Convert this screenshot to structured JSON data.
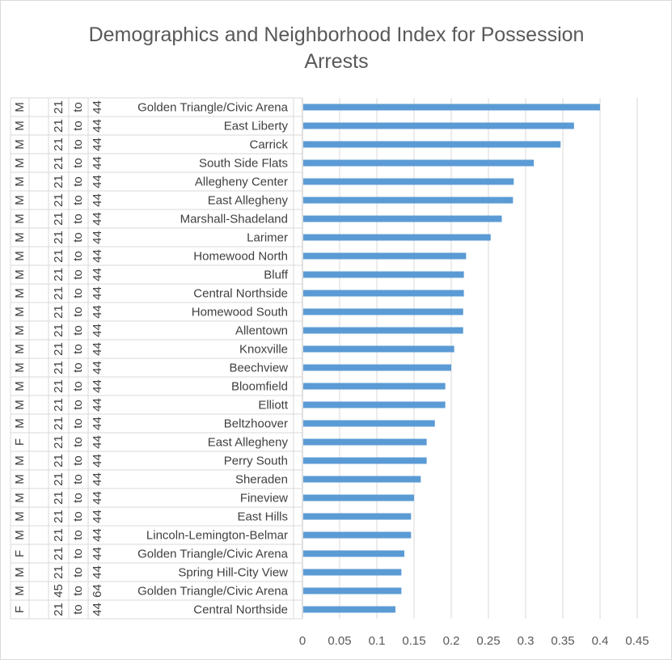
{
  "chart_data": {
    "type": "bar",
    "orientation": "horizontal",
    "title": "Demographics and Neighborhood Index for Possession Arrests",
    "xlim": [
      0,
      0.45
    ],
    "x_ticks": [
      "0",
      "0.05",
      "0.1",
      "0.15",
      "0.2",
      "0.25",
      "0.3",
      "0.35",
      "0.4",
      "0.45"
    ],
    "grid": true,
    "categories": [
      {
        "neighborhood": "Golden Triangle/Civic Arena",
        "age": "21 to 44",
        "sex": "M",
        "value": 0.4
      },
      {
        "neighborhood": "East Liberty",
        "age": "21 to 44",
        "sex": "M",
        "value": 0.365
      },
      {
        "neighborhood": "Carrick",
        "age": "21 to 44",
        "sex": "M",
        "value": 0.347
      },
      {
        "neighborhood": "South Side Flats",
        "age": "21 to 44",
        "sex": "M",
        "value": 0.311
      },
      {
        "neighborhood": "Allegheny Center",
        "age": "21 to 44",
        "sex": "M",
        "value": 0.284
      },
      {
        "neighborhood": "East Allegheny",
        "age": "21 to 44",
        "sex": "M",
        "value": 0.283
      },
      {
        "neighborhood": "Marshall-Shadeland",
        "age": "21 to 44",
        "sex": "M",
        "value": 0.268
      },
      {
        "neighborhood": "Larimer",
        "age": "21 to 44",
        "sex": "M",
        "value": 0.253
      },
      {
        "neighborhood": "Homewood North",
        "age": "21 to 44",
        "sex": "M",
        "value": 0.22
      },
      {
        "neighborhood": "Bluff",
        "age": "21 to 44",
        "sex": "M",
        "value": 0.217
      },
      {
        "neighborhood": "Central Northside",
        "age": "21 to 44",
        "sex": "M",
        "value": 0.217
      },
      {
        "neighborhood": "Homewood South",
        "age": "21 to 44",
        "sex": "M",
        "value": 0.216
      },
      {
        "neighborhood": "Allentown",
        "age": "21 to 44",
        "sex": "M",
        "value": 0.216
      },
      {
        "neighborhood": "Knoxville",
        "age": "21 to 44",
        "sex": "M",
        "value": 0.204
      },
      {
        "neighborhood": "Beechview",
        "age": "21 to 44",
        "sex": "M",
        "value": 0.2
      },
      {
        "neighborhood": "Bloomfield",
        "age": "21 to 44",
        "sex": "M",
        "value": 0.192
      },
      {
        "neighborhood": "Elliott",
        "age": "21 to 44",
        "sex": "M",
        "value": 0.192
      },
      {
        "neighborhood": "Beltzhoover",
        "age": "21 to 44",
        "sex": "M",
        "value": 0.178
      },
      {
        "neighborhood": "East Allegheny",
        "age": "21 to 44",
        "sex": "F",
        "value": 0.167
      },
      {
        "neighborhood": "Perry South",
        "age": "21 to 44",
        "sex": "M",
        "value": 0.167
      },
      {
        "neighborhood": "Sheraden",
        "age": "21 to 44",
        "sex": "M",
        "value": 0.159
      },
      {
        "neighborhood": "Fineview",
        "age": "21 to 44",
        "sex": "M",
        "value": 0.15
      },
      {
        "neighborhood": "East Hills",
        "age": "21 to 44",
        "sex": "M",
        "value": 0.146
      },
      {
        "neighborhood": "Lincoln-Lemington-Belmar",
        "age": "21 to 44",
        "sex": "M",
        "value": 0.146
      },
      {
        "neighborhood": "Golden Triangle/Civic Arena",
        "age": "21 to 44",
        "sex": "F",
        "value": 0.137
      },
      {
        "neighborhood": "Spring Hill-City View",
        "age": "21 to 44",
        "sex": "M",
        "value": 0.133
      },
      {
        "neighborhood": "Golden Triangle/Civic Arena",
        "age": "45 to 64",
        "sex": "M",
        "value": 0.133
      },
      {
        "neighborhood": "Central Northside",
        "age": "21 to 44",
        "sex": "F",
        "value": 0.125
      }
    ],
    "colors": {
      "bar": "#5b9bd5",
      "grid": "#d9d9d9",
      "axis": "#bfbfbf"
    }
  }
}
